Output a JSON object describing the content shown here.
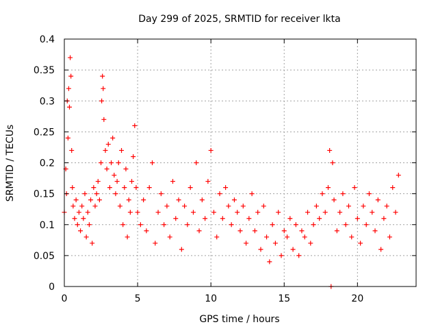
{
  "chart_data": {
    "type": "scatter",
    "title": "Day 299 of 2025, SRMTID for receiver lkta",
    "xlabel": "GPS time / hours",
    "ylabel": "SRMTID / TECUs",
    "xlim": [
      0,
      24
    ],
    "ylim": [
      0,
      0.4
    ],
    "xticks": [
      0,
      5,
      10,
      15,
      20
    ],
    "xtick_labels": [
      "0",
      "5",
      "10",
      "15",
      "20"
    ],
    "yticks": [
      0,
      0.05,
      0.1,
      0.15,
      0.2,
      0.25,
      0.3,
      0.35,
      0.4
    ],
    "ytick_labels": [
      "0",
      "0.05",
      "0.1",
      "0.15",
      "0.2",
      "0.25",
      "0.3",
      "0.35",
      "0.4"
    ],
    "grid": true,
    "marker": "plus",
    "color": "#ff0000",
    "series": [
      {
        "name": "SRMTID",
        "x": [
          0.0,
          0.1,
          0.15,
          0.2,
          0.25,
          0.3,
          0.35,
          0.4,
          0.45,
          0.5,
          0.55,
          0.6,
          0.7,
          0.8,
          0.9,
          1.0,
          1.1,
          1.2,
          1.3,
          1.4,
          1.5,
          1.6,
          1.7,
          1.8,
          1.9,
          2.0,
          2.1,
          2.2,
          2.3,
          2.4,
          2.5,
          2.55,
          2.6,
          2.65,
          2.7,
          2.8,
          2.9,
          3.0,
          3.1,
          3.2,
          3.3,
          3.4,
          3.5,
          3.6,
          3.7,
          3.8,
          3.9,
          4.0,
          4.1,
          4.2,
          4.3,
          4.4,
          4.5,
          4.6,
          4.7,
          4.8,
          4.9,
          5.0,
          5.2,
          5.4,
          5.6,
          5.8,
          6.0,
          6.2,
          6.4,
          6.6,
          6.8,
          7.0,
          7.2,
          7.4,
          7.6,
          7.8,
          8.0,
          8.2,
          8.4,
          8.6,
          8.8,
          9.0,
          9.2,
          9.4,
          9.6,
          9.8,
          10.0,
          10.2,
          10.4,
          10.6,
          10.8,
          11.0,
          11.2,
          11.4,
          11.6,
          11.8,
          12.0,
          12.2,
          12.4,
          12.6,
          12.8,
          13.0,
          13.2,
          13.4,
          13.6,
          13.8,
          14.0,
          14.2,
          14.4,
          14.6,
          14.8,
          15.0,
          15.2,
          15.4,
          15.6,
          15.8,
          16.0,
          16.2,
          16.4,
          16.6,
          16.8,
          17.0,
          17.2,
          17.4,
          17.6,
          17.8,
          18.0,
          18.1,
          18.2,
          18.3,
          18.4,
          18.6,
          18.8,
          19.0,
          19.2,
          19.4,
          19.6,
          19.8,
          20.0,
          20.2,
          20.4,
          20.6,
          20.8,
          21.0,
          21.2,
          21.4,
          21.6,
          21.8,
          22.0,
          22.2,
          22.4,
          22.6,
          22.8
        ],
        "y": [
          0.12,
          0.19,
          0.15,
          0.3,
          0.24,
          0.32,
          0.29,
          0.37,
          0.34,
          0.22,
          0.16,
          0.13,
          0.11,
          0.14,
          0.1,
          0.12,
          0.09,
          0.13,
          0.11,
          0.15,
          0.08,
          0.12,
          0.1,
          0.14,
          0.07,
          0.16,
          0.13,
          0.15,
          0.17,
          0.14,
          0.2,
          0.3,
          0.34,
          0.32,
          0.27,
          0.22,
          0.19,
          0.23,
          0.16,
          0.2,
          0.24,
          0.18,
          0.15,
          0.17,
          0.2,
          0.13,
          0.22,
          0.1,
          0.16,
          0.19,
          0.08,
          0.14,
          0.12,
          0.17,
          0.21,
          0.26,
          0.16,
          0.12,
          0.1,
          0.14,
          0.09,
          0.16,
          0.2,
          0.07,
          0.12,
          0.15,
          0.1,
          0.13,
          0.08,
          0.17,
          0.11,
          0.14,
          0.06,
          0.13,
          0.1,
          0.16,
          0.12,
          0.2,
          0.09,
          0.14,
          0.11,
          0.17,
          0.22,
          0.12,
          0.08,
          0.15,
          0.11,
          0.16,
          0.13,
          0.1,
          0.14,
          0.12,
          0.09,
          0.13,
          0.07,
          0.11,
          0.15,
          0.09,
          0.12,
          0.06,
          0.13,
          0.08,
          0.04,
          0.1,
          0.07,
          0.12,
          0.05,
          0.09,
          0.08,
          0.11,
          0.06,
          0.1,
          0.05,
          0.09,
          0.08,
          0.12,
          0.07,
          0.1,
          0.13,
          0.11,
          0.15,
          0.12,
          0.16,
          0.22,
          0.0,
          0.2,
          0.14,
          0.09,
          0.12,
          0.15,
          0.1,
          0.13,
          0.08,
          0.16,
          0.11,
          0.07,
          0.13,
          0.1,
          0.15,
          0.12,
          0.09,
          0.14,
          0.06,
          0.11,
          0.13,
          0.08,
          0.16,
          0.12,
          0.18
        ]
      }
    ]
  }
}
